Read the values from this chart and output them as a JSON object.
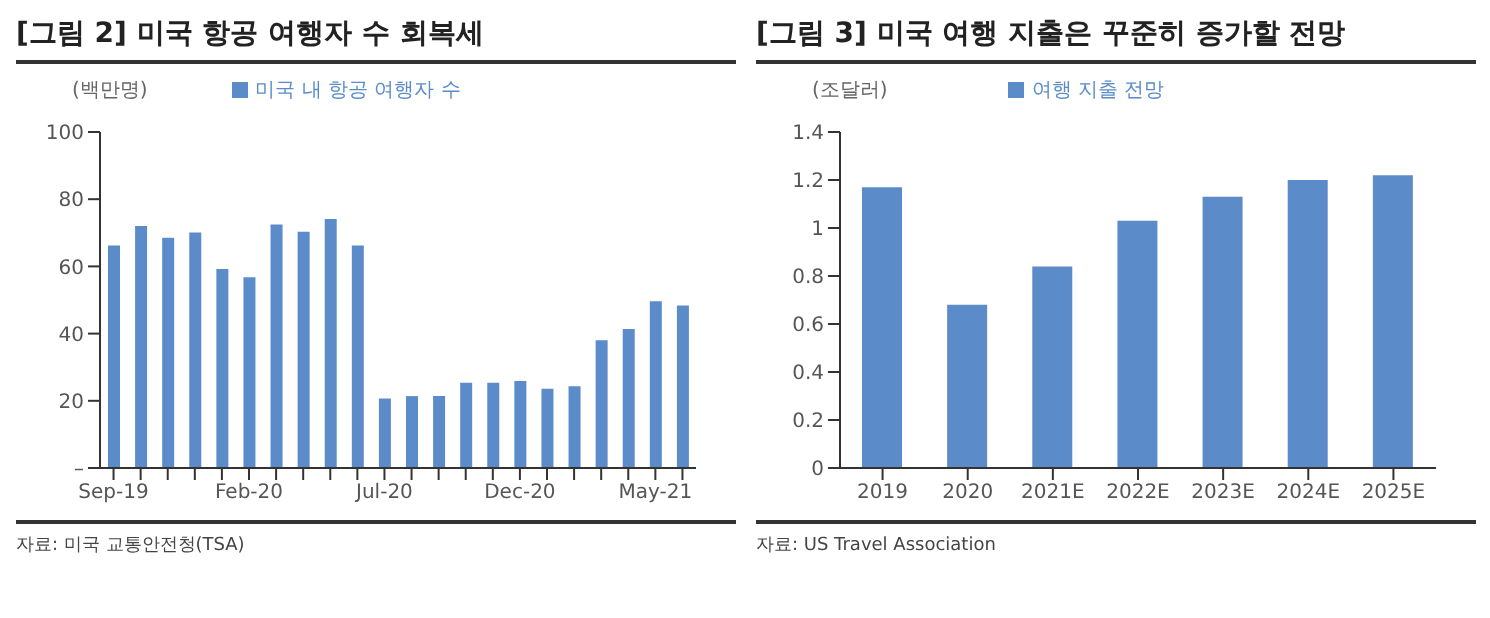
{
  "chart_data": [
    {
      "type": "bar",
      "title": "[그림 2] 미국 항공 여행자 수 회복세",
      "ylabel": "(백만명)",
      "categories": [
        "Sep-19",
        null,
        null,
        null,
        null,
        "Feb-20",
        null,
        null,
        null,
        null,
        "Jul-20",
        null,
        null,
        null,
        null,
        "Dec-20",
        null,
        null,
        null,
        null,
        "May-21",
        null
      ],
      "series": [
        {
          "name": "미국 내 항공 여행자 수",
          "color": "#5b8cc9",
          "values": [
            66.2,
            72,
            68.5,
            70.1,
            59.2,
            56.8,
            72.5,
            70.3,
            74.1,
            66.2,
            20.7,
            21.4,
            21.4,
            25.4,
            25.4,
            25.9,
            23.6,
            24.3,
            38,
            41.4,
            49.6,
            48.4
          ]
        }
      ],
      "ylim": [
        0,
        100
      ],
      "yticks": [
        {
          "value": 0,
          "label": "–"
        },
        20,
        40,
        60,
        80,
        100
      ],
      "grid": false,
      "legend": "top",
      "annotations": [
        "자료: 미국 교통안전청(TSA)"
      ]
    },
    {
      "type": "bar",
      "title": "[그림 3] 미국 여행 지출은 꾸준히 증가할 전망",
      "ylabel": "(조달러)",
      "categories": [
        "2019",
        "2020",
        "2021E",
        "2022E",
        "2023E",
        "2024E",
        "2025E"
      ],
      "series": [
        {
          "name": "여행 지출 전망",
          "color": "#5b8cc9",
          "values": [
            1.17,
            0.68,
            0.84,
            1.03,
            1.13,
            1.2,
            1.22
          ]
        }
      ],
      "ylim": [
        0,
        1.4
      ],
      "yticks": [
        0,
        0.2,
        0.4,
        0.6,
        0.8,
        1,
        1.2,
        1.4
      ],
      "grid": false,
      "legend": "top",
      "annotations": [
        "자료: US Travel Association"
      ]
    }
  ]
}
